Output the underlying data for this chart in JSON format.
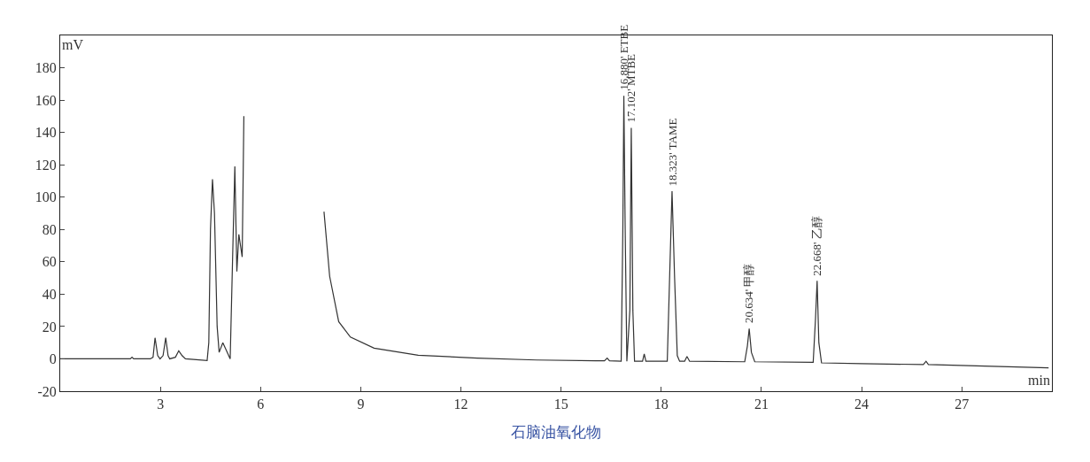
{
  "chart_data": {
    "type": "line",
    "title": "石脑油氧化物",
    "xlabel": "min",
    "ylabel": "mV",
    "xlim": [
      0,
      29.7
    ],
    "ylim": [
      -20,
      200
    ],
    "xticks": [
      3,
      6,
      9,
      12,
      15,
      18,
      21,
      24,
      27
    ],
    "yticks": [
      -20,
      0,
      20,
      40,
      60,
      80,
      100,
      120,
      140,
      160,
      180
    ],
    "marker": "none",
    "line_style": "solid",
    "series": [
      {
        "color": "#333333",
        "x": [
          0,
          2.1,
          2.15,
          2.2,
          2.7,
          2.78,
          2.84,
          2.92,
          2.99,
          3.08,
          3.16,
          3.23,
          3.28,
          3.45,
          3.55,
          3.65,
          3.75,
          4.4,
          4.45,
          4.5,
          4.56,
          4.62,
          4.7,
          4.76,
          4.87,
          4.98,
          5.09,
          5.16,
          5.23,
          5.29,
          5.35,
          5.45,
          5.5,
          null,
          7.9,
          8.07,
          8.34,
          8.69,
          9.4,
          10.72,
          12.49,
          14.26,
          16.03,
          16.3,
          16.38,
          16.45,
          16.8,
          16.85,
          16.88,
          16.92,
          16.97,
          17.06,
          17.102,
          17.15,
          17.2,
          17.44,
          17.49,
          17.54,
          18.18,
          18.25,
          18.323,
          18.4,
          18.48,
          18.55,
          18.7,
          18.77,
          18.85,
          20.5,
          20.58,
          20.634,
          20.7,
          20.8,
          22.55,
          22.62,
          22.668,
          22.72,
          22.8,
          24,
          25.85,
          25.93,
          26,
          29.6
        ],
        "values": [
          0,
          0,
          1,
          0,
          0,
          1,
          13,
          2,
          0,
          2,
          13,
          2,
          0,
          1,
          5,
          2,
          0,
          -1,
          10,
          80,
          111,
          90,
          20,
          4,
          10,
          5,
          0,
          60,
          119,
          54,
          77,
          63,
          150,
          null,
          91,
          51,
          23,
          13.5,
          6.6,
          2.2,
          0.5,
          -0.7,
          -1.2,
          -1.2,
          0.5,
          -1.2,
          -1.5,
          80,
          162.7,
          80,
          -1.5,
          30,
          142.8,
          30,
          -1.5,
          -1.5,
          3,
          -1.5,
          -1.5,
          50,
          103.7,
          50,
          2,
          -1.5,
          -1.5,
          1.5,
          -1.5,
          -1.8,
          8,
          18.7,
          4,
          -1.8,
          -2.2,
          25,
          48.2,
          10,
          -2.5,
          -3,
          -3.5,
          -1.5,
          -3.5,
          -5.6
        ]
      }
    ],
    "annotations": [
      {
        "text": "16.880' ETBE",
        "x": 16.88,
        "y": 162.7
      },
      {
        "text": "17.102' MTBE",
        "x": 17.102,
        "y": 142.8
      },
      {
        "text": "18.323' TAME",
        "x": 18.323,
        "y": 103.7
      },
      {
        "text": "20.634' 甲醇",
        "x": 20.634,
        "y": 18.7
      },
      {
        "text": "22.668' 乙醇",
        "x": 22.668,
        "y": 48.2
      }
    ]
  }
}
